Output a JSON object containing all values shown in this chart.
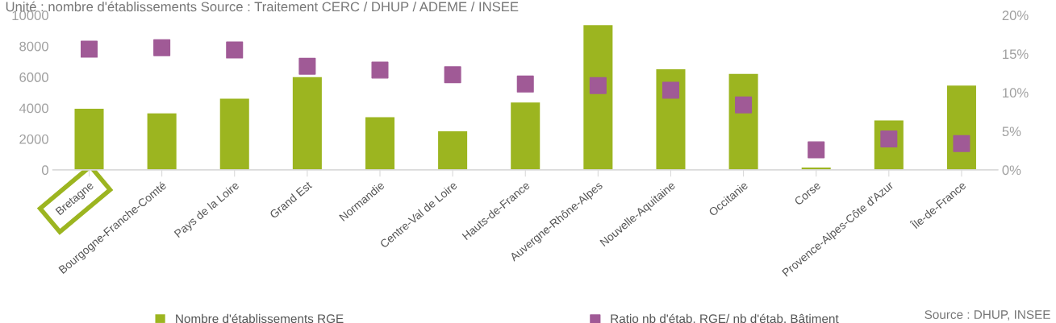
{
  "chart_data": {
    "type": "bar",
    "categories": [
      "Bretagne",
      "Bourgogne-Franche-Comté",
      "Pays de la Loire",
      "Grand Est",
      "Normandie",
      "Centre-Val de Loire",
      "Hauts-de-France",
      "Auvergne-Rhône-Alpes",
      "Nouvelle-Aquitaine",
      "Occitanie",
      "Corse",
      "Provence-Alpes-Côte d'Azur",
      "Île-de-France"
    ],
    "series": [
      {
        "name": "Nombre d'établissements RGE",
        "color": "#9cb520",
        "values": [
          3950,
          3650,
          4600,
          6000,
          3400,
          2500,
          4350,
          9350,
          6500,
          6200,
          150,
          3200,
          5450
        ]
      },
      {
        "name": "Ratio nb d'étab. RGE/ nb d'étab. Bâtiment",
        "type": "scatter",
        "axis": "y2",
        "marker": "square",
        "color": "#a05a96",
        "values": [
          15.6,
          15.8,
          15.5,
          13.4,
          12.9,
          12.3,
          11.1,
          10.9,
          10.3,
          8.4,
          2.6,
          4.0,
          3.4
        ]
      }
    ],
    "ylim": [
      0,
      10000
    ],
    "yticks": [
      0,
      2000,
      4000,
      6000,
      8000,
      10000
    ],
    "y2lim": [
      0,
      20
    ],
    "y2ticks": [
      {
        "value": 0,
        "label": "0%"
      },
      {
        "value": 5,
        "label": "5%"
      },
      {
        "value": 10,
        "label": "10%"
      },
      {
        "value": 15,
        "label": "15%"
      },
      {
        "value": 20,
        "label": "20%"
      }
    ],
    "grid": false,
    "legend": "bottom",
    "annotations": [
      "Unité : nombre d'établissements Source : Traitement CERC / DHUP / ADEME / INSEE",
      "Source : DHUP, INSEE"
    ]
  }
}
